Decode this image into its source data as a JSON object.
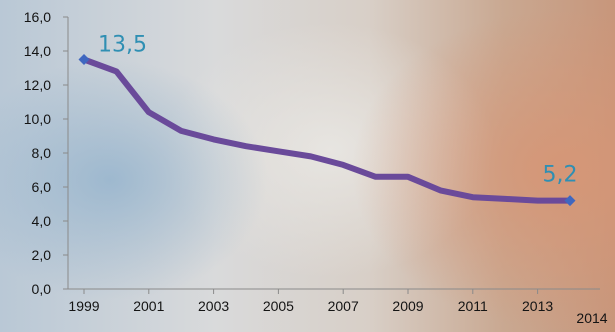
{
  "chart_data": {
    "type": "line",
    "x": [
      1999,
      2000,
      2001,
      2002,
      2003,
      2004,
      2005,
      2006,
      2007,
      2008,
      2009,
      2010,
      2011,
      2012,
      2013,
      2014
    ],
    "series": [
      {
        "values": [
          13.5,
          12.8,
          10.4,
          9.3,
          8.8,
          8.4,
          8.1,
          7.8,
          7.3,
          6.6,
          6.6,
          5.8,
          5.4,
          5.3,
          5.2,
          5.2
        ]
      }
    ],
    "x_tick_labels": [
      "1999",
      "2001",
      "2003",
      "2005",
      "2007",
      "2009",
      "2011",
      "2013",
      "2014"
    ],
    "y_tick_labels": [
      "0,0",
      "2,0",
      "4,0",
      "6,0",
      "8,0",
      "10,0",
      "12,0",
      "14,0",
      "16,0"
    ],
    "ylim": [
      0,
      16
    ],
    "xlim": [
      1999,
      2014
    ],
    "data_labels": [
      {
        "x": 1999,
        "text": "13,5"
      },
      {
        "x": 2014,
        "text": "5,2"
      }
    ],
    "line_color": "#6a4a9a",
    "marker_color": "#3f67c0",
    "label_color": "#2f8fb3",
    "title": "",
    "xlabel": "",
    "ylabel": "",
    "grid": false,
    "legend": "none"
  }
}
